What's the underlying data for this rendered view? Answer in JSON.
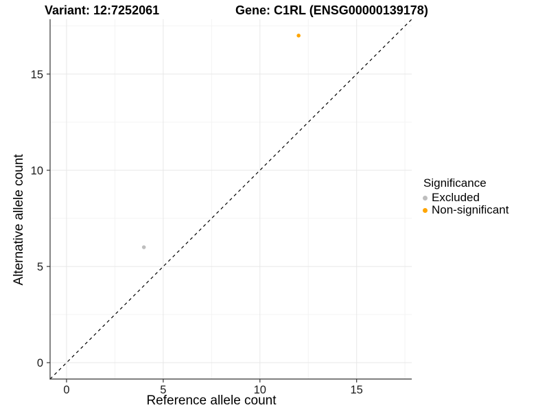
{
  "titles": {
    "variant": "Variant: 12:7252061",
    "gene": "Gene: C1RL (ENSG00000139178)"
  },
  "chart_data": {
    "type": "scatter",
    "title": "Variant: 12:7252061   Gene: C1RL (ENSG00000139178)",
    "xlabel": "Reference allele count",
    "ylabel": "Alternative allele count",
    "xlim": [
      -0.85,
      17.85
    ],
    "ylim": [
      -0.85,
      17.85
    ],
    "x_ticks": [
      0,
      5,
      10,
      15
    ],
    "y_ticks": [
      0,
      5,
      10,
      15
    ],
    "x_minor_ticks": [
      2.5,
      7.5,
      12.5,
      17.5
    ],
    "y_minor_ticks": [
      2.5,
      7.5,
      12.5,
      17.5
    ],
    "grid": "major+minor",
    "identity_line": {
      "style": "dashed",
      "from": [
        -0.85,
        -0.85
      ],
      "to": [
        17.85,
        17.85
      ],
      "color": "#000000"
    },
    "series": [
      {
        "name": "Excluded",
        "color": "#BEBEBE",
        "points": [
          {
            "x": 4,
            "y": 6
          }
        ]
      },
      {
        "name": "Non-significant",
        "color": "#FFA500",
        "points": [
          {
            "x": 12,
            "y": 17
          }
        ]
      }
    ],
    "legend": {
      "title": "Significance",
      "position": "right"
    }
  },
  "style_colors": {
    "grid_major": "#e7e7e7",
    "grid_minor": "#f3f3f3",
    "axis_line": "#333333",
    "tick_label": "#1a1a1a"
  }
}
